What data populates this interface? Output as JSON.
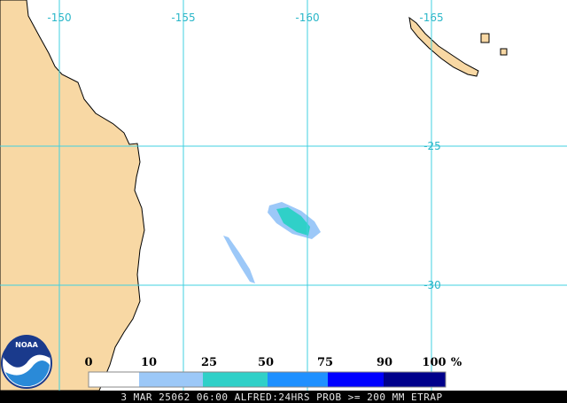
{
  "map": {
    "longitude_labels": [
      -150,
      -155,
      -160,
      -165
    ],
    "latitude_labels": [
      -25,
      -30
    ],
    "logo": "NOAA",
    "legend": {
      "labels": [
        0,
        10,
        25,
        50,
        75,
        90,
        100
      ],
      "unit": "%"
    },
    "caption": "3 MAR 25062 06:00 ALFRED:24HRS PROB >= 200 MM ETRAP"
  }
}
